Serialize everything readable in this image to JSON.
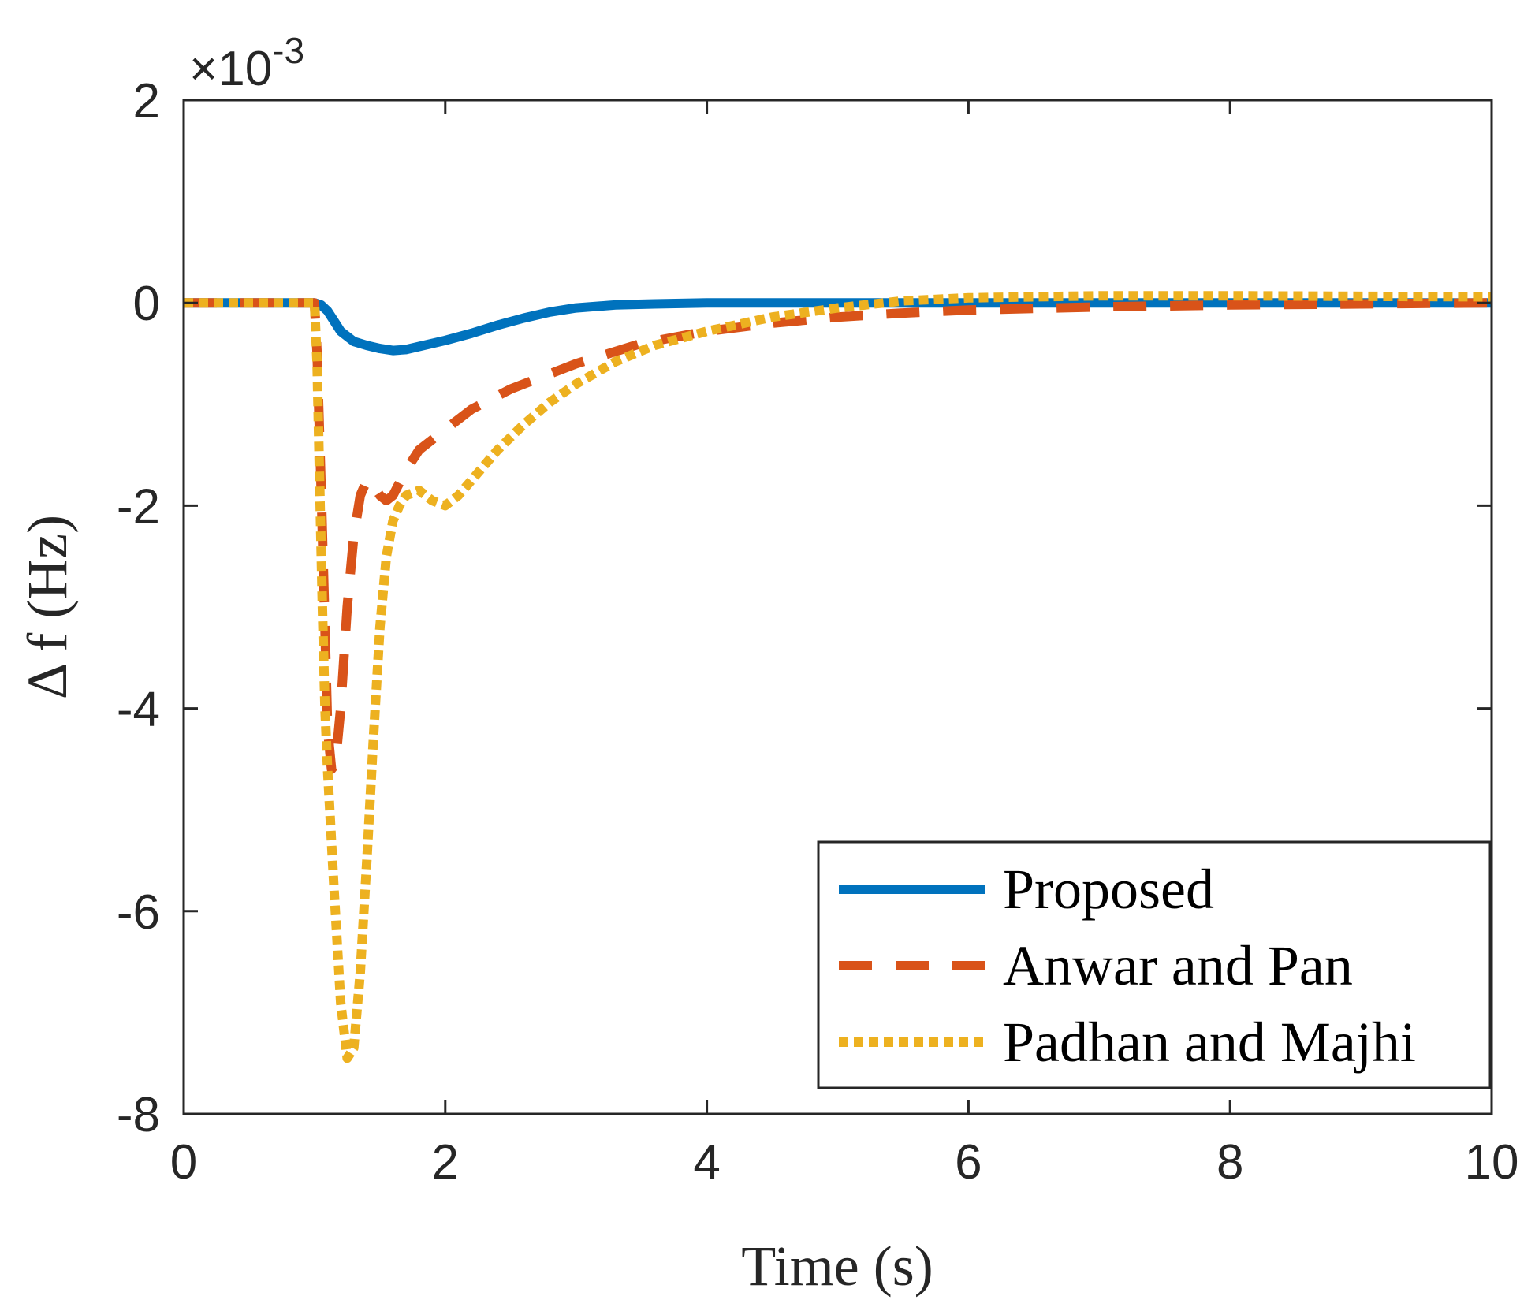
{
  "chart_data": {
    "type": "line",
    "title": "",
    "xlabel": "Time (s)",
    "ylabel": "Δ f (Hz)",
    "xlim": [
      0,
      10
    ],
    "ylim": [
      -8,
      2
    ],
    "xticks": [
      0,
      2,
      4,
      6,
      8,
      10
    ],
    "yticks": [
      -8,
      -6,
      -4,
      -2,
      0,
      2
    ],
    "xtick_labels": [
      "0",
      "2",
      "4",
      "6",
      "8",
      "10"
    ],
    "ytick_labels": [
      "-8",
      "-6",
      "-4",
      "-2",
      "0",
      "2"
    ],
    "y_exponent_label": "×10",
    "y_exponent_power": "-3",
    "grid": false,
    "legend_position": "bottom-right",
    "series": [
      {
        "name": "Proposed",
        "color": "#0072BD",
        "style": "solid",
        "x": [
          0,
          1.0,
          1.05,
          1.1,
          1.15,
          1.2,
          1.3,
          1.4,
          1.5,
          1.6,
          1.7,
          1.8,
          2.0,
          2.2,
          2.4,
          2.6,
          2.8,
          3.0,
          3.3,
          3.6,
          4.0,
          4.5,
          5.0,
          6.0,
          8.0,
          10.0
        ],
        "y": [
          0,
          0,
          -0.02,
          -0.08,
          -0.18,
          -0.28,
          -0.38,
          -0.42,
          -0.45,
          -0.47,
          -0.46,
          -0.43,
          -0.37,
          -0.3,
          -0.22,
          -0.15,
          -0.09,
          -0.05,
          -0.02,
          -0.01,
          0,
          0,
          0,
          0,
          0,
          0
        ]
      },
      {
        "name": "Anwar and Pan",
        "color": "#D95319",
        "style": "dashed",
        "x": [
          0,
          1.0,
          1.02,
          1.05,
          1.08,
          1.1,
          1.13,
          1.16,
          1.2,
          1.25,
          1.3,
          1.35,
          1.4,
          1.45,
          1.5,
          1.55,
          1.6,
          1.7,
          1.8,
          2.0,
          2.2,
          2.5,
          3.0,
          3.5,
          4.0,
          4.5,
          5.0,
          5.5,
          6.0,
          7.0,
          8.0,
          9.0,
          10.0
        ],
        "y": [
          0,
          0,
          -0.5,
          -1.8,
          -3.2,
          -4.2,
          -4.6,
          -4.55,
          -4.0,
          -3.0,
          -2.3,
          -1.9,
          -1.75,
          -1.8,
          -1.9,
          -1.95,
          -1.9,
          -1.65,
          -1.45,
          -1.25,
          -1.05,
          -0.85,
          -0.6,
          -0.4,
          -0.28,
          -0.2,
          -0.14,
          -0.1,
          -0.07,
          -0.04,
          -0.02,
          -0.01,
          0
        ]
      },
      {
        "name": "Padhan and Majhi",
        "color": "#EDB120",
        "style": "dotted",
        "x": [
          0,
          1.0,
          1.02,
          1.04,
          1.06,
          1.08,
          1.1,
          1.15,
          1.2,
          1.25,
          1.3,
          1.35,
          1.4,
          1.45,
          1.5,
          1.55,
          1.6,
          1.65,
          1.7,
          1.8,
          1.9,
          2.0,
          2.1,
          2.2,
          2.4,
          2.6,
          2.8,
          3.0,
          3.3,
          3.6,
          4.0,
          4.5,
          5.0,
          5.5,
          6.0,
          7.0,
          8.0,
          10.0
        ],
        "y": [
          0,
          0,
          -0.6,
          -1.8,
          -3.0,
          -4.0,
          -4.6,
          -5.8,
          -6.9,
          -7.45,
          -7.35,
          -6.6,
          -5.5,
          -4.3,
          -3.2,
          -2.5,
          -2.15,
          -2.0,
          -1.9,
          -1.85,
          -1.95,
          -2.0,
          -1.9,
          -1.75,
          -1.45,
          -1.2,
          -0.98,
          -0.8,
          -0.58,
          -0.42,
          -0.28,
          -0.14,
          -0.05,
          0.02,
          0.05,
          0.07,
          0.07,
          0.06
        ]
      }
    ]
  }
}
